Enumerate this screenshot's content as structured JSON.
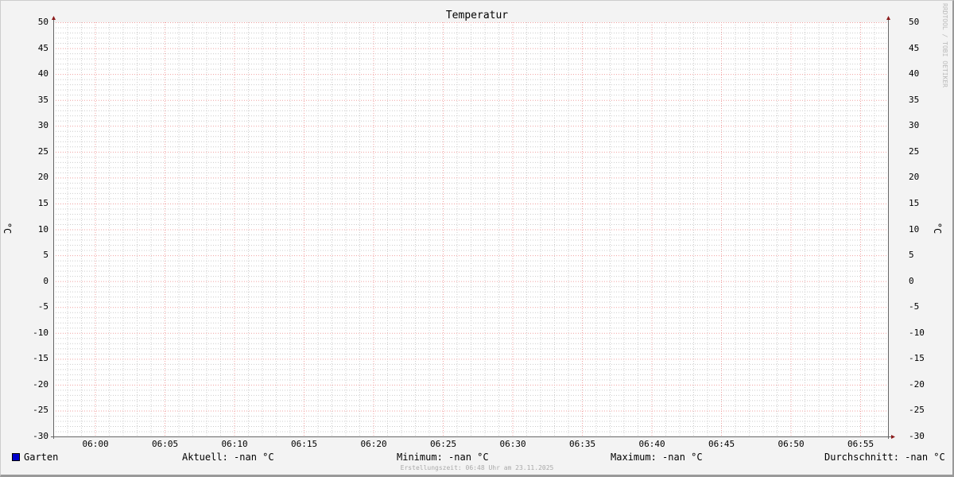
{
  "chart_data": {
    "type": "line",
    "title": "Temperatur",
    "ylabel": "°C",
    "ylabel_right": "°C",
    "ylim": [
      -30,
      50
    ],
    "yticks": [
      50,
      45,
      40,
      35,
      30,
      25,
      20,
      15,
      10,
      5,
      0,
      -5,
      -10,
      -15,
      -20,
      -25,
      -30
    ],
    "xlim": [
      "05:57",
      "06:57"
    ],
    "xticks": [
      "06:00",
      "06:05",
      "06:10",
      "06:15",
      "06:20",
      "06:25",
      "06:30",
      "06:35",
      "06:40",
      "06:45",
      "06:50",
      "06:55"
    ],
    "grid": true,
    "legend_placement": "bottom",
    "series": [
      {
        "name": "Garten",
        "color": "#0000cc",
        "values": []
      }
    ]
  },
  "legend": {
    "series_name": "Garten",
    "current": "Aktuell: -nan °C",
    "minimum": "Minimum: -nan °C",
    "maximum": "Maximum: -nan °C",
    "average": "Durchschnitt: -nan °C",
    "created": "Erstellungszeit: 06:48 Uhr am 23.11.2025"
  },
  "watermark": "RRDTOOL / TOBI OETIKER",
  "colors": {
    "major_grid": "#f0a0a0",
    "minor_grid": "#cccccc",
    "axis": "#666666",
    "arrow": "#8b1a1a"
  }
}
